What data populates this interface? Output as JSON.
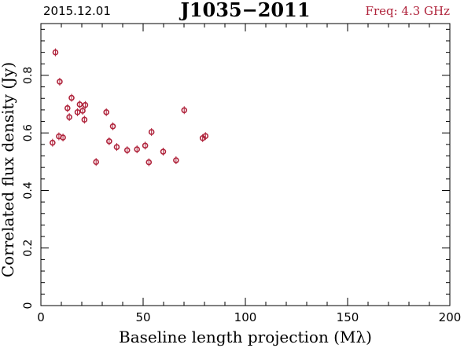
{
  "header": {
    "date": "2015.12.01",
    "source": "J1035−2011",
    "freq_label": "Freq: 4.3 GHz"
  },
  "colors": {
    "marker": "#b0243c",
    "freq_text": "#b0243c",
    "axis": "#000000"
  },
  "chart_data": {
    "type": "scatter",
    "title": "J1035−2011",
    "xlabel": "Baseline length projection (Mλ)",
    "ylabel": "Correlated flux density (Jy)",
    "xlim": [
      0,
      200
    ],
    "ylim": [
      0,
      0.98
    ],
    "x_ticks": [
      0,
      50,
      100,
      150,
      200
    ],
    "x_tick_labels": [
      "0",
      "50",
      "100",
      "150",
      "200"
    ],
    "y_ticks": [
      0,
      0.2,
      0.4,
      0.6,
      0.8
    ],
    "y_tick_labels": [
      "0",
      "0.2",
      "0.4",
      "0.6",
      "0.8"
    ],
    "grid": false,
    "series": [
      {
        "x": [
          5.7,
          7.1,
          8.8,
          9.2,
          10.8,
          13.0,
          13.9,
          15.0,
          17.9,
          19.0,
          20.4,
          21.3,
          21.7,
          27.0,
          32.0,
          33.4,
          35.2,
          37.1,
          42.2,
          47.0,
          51.0,
          52.8,
          54.1,
          59.8,
          66.1,
          70.1,
          79.1,
          80.5
        ],
        "y": [
          0.566,
          0.88,
          0.588,
          0.778,
          0.584,
          0.686,
          0.655,
          0.722,
          0.672,
          0.699,
          0.677,
          0.646,
          0.697,
          0.499,
          0.672,
          0.571,
          0.623,
          0.551,
          0.54,
          0.543,
          0.556,
          0.498,
          0.603,
          0.535,
          0.505,
          0.679,
          0.582,
          0.589
        ]
      }
    ]
  }
}
